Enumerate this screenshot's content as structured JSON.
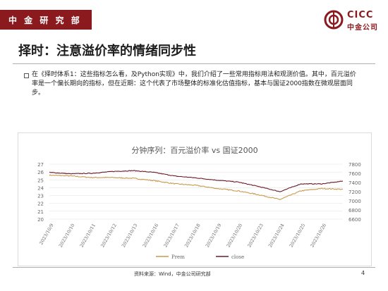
{
  "header": {
    "section_label": "中 金 研 究 部"
  },
  "logo": {
    "brand_en": "CICC",
    "brand_cn": "中金公司"
  },
  "slide": {
    "title": "择时：注意溢价率的情绪同步性",
    "body": "在《择时体系1：这些指标怎么看，及Python实现》中，我们介绍了一些常用指标用法和观测价值。其中，百元溢价率是一个偏长期向的指标，但在近期：这个代表了市场整体的标准化估值指标，基本与国证2000指数在微观层面同步。"
  },
  "footer": {
    "source": "资料来源：Wind，中金公司研究部",
    "page": "4"
  },
  "colors": {
    "brand": "#8b1a1f",
    "prem": "#c99a4d",
    "close": "#6b1a2a"
  },
  "chart_data": {
    "type": "line",
    "title": "分钟序列：百元溢价率 vs 国证2000",
    "x_tick_labels": [
      "2023/10/9",
      "2023/10/10",
      "2023/10/11",
      "2023/10/12",
      "2023/10/13",
      "2023/10/16",
      "2023/10/17",
      "2023/10/18",
      "2023/10/19",
      "2023/10/20",
      "2023/10/23",
      "2023/10/24",
      "2023/10/25",
      "2023/10/26"
    ],
    "y_left": {
      "ticks": [
        20,
        21,
        22,
        23,
        24,
        25,
        26,
        27
      ],
      "lim": [
        20,
        27
      ]
    },
    "y_right": {
      "ticks": [
        6600,
        6800,
        7000,
        7200,
        7400,
        7600,
        7800
      ],
      "lim": [
        6600,
        7800
      ]
    },
    "legend_position": "bottom",
    "grid": true,
    "series": [
      {
        "name": "Prem",
        "axis": "left",
        "color": "#c99a4d",
        "day_values": [
          25.6,
          25.5,
          25.3,
          25.3,
          25.2,
          24.9,
          24.5,
          24.3,
          23.9,
          23.6,
          23.1,
          22.5,
          23.6,
          23.9
        ],
        "end_value": 23.8
      },
      {
        "name": "close",
        "axis": "right",
        "color": "#6b1a2a",
        "day_values": [
          7620,
          7590,
          7600,
          7640,
          7660,
          7620,
          7540,
          7500,
          7450,
          7410,
          7310,
          7200,
          7370,
          7370
        ],
        "end_value": 7430
      }
    ]
  }
}
